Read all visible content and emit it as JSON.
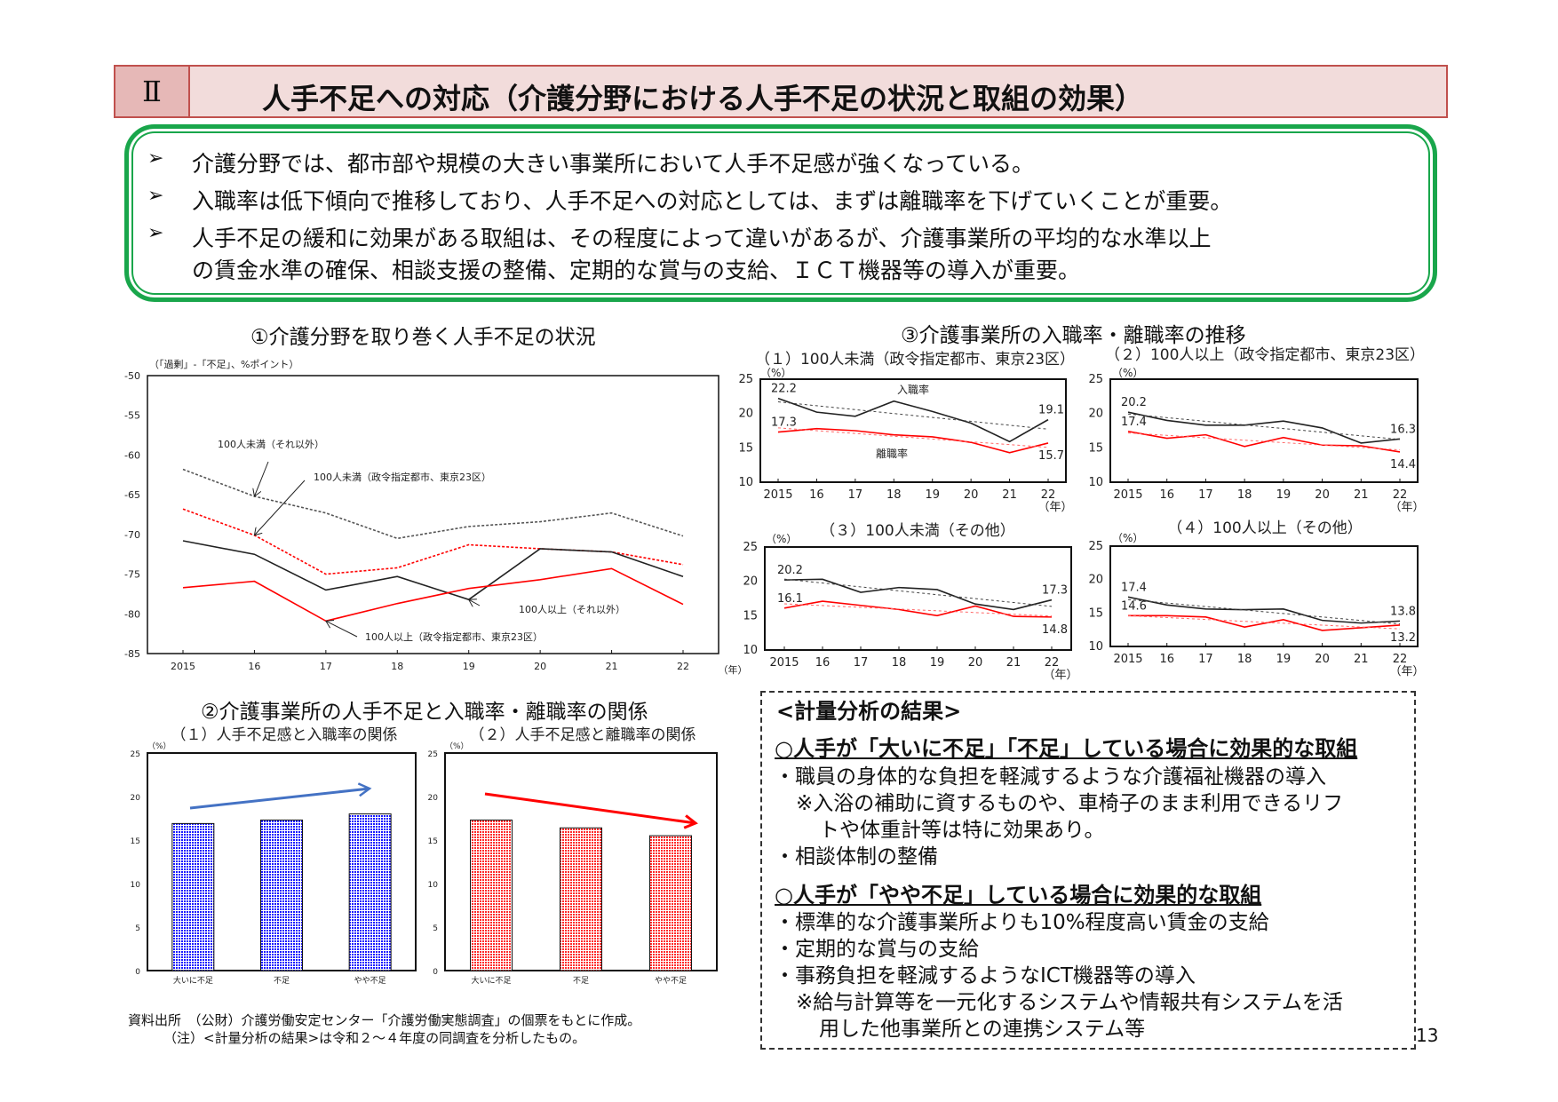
{
  "header": {
    "roman": "Ⅱ",
    "title": "人手不足への対応（介護分野における人手不足の状況と取組の効果）"
  },
  "summary": {
    "bullet_icon": "arrow-right-icon",
    "arrow": "➢",
    "lines": [
      "介護分野では、都市部や規模の大きい事業所において人手不足感が強くなっている。",
      "入職率は低下傾向で推移しており、人手不足への対応としては、まずは離職率を下げていくことが重要。",
      "人手不足の緩和に効果がある取組は、その程度によって違いがあるが、介護事業所の平均的な水準以上",
      "の賃金水準の確保、相談支援の整備、定期的な賞与の支給、ＩＣＴ機器等の導入が重要。"
    ]
  },
  "section1_title": "①介護分野を取り巻く人手不足の状況",
  "section2_title": "②介護事業所の人手不足と入職率・離職率の関係",
  "section3_title": "③介護事業所の入職率・離職率の推移",
  "chart_data": [
    {
      "id": "c1",
      "type": "line",
      "title": "①介護分野を取り巻く人手不足の状況",
      "ylabel": "（「過剰」-「不足」、%ポイント）",
      "xunit": "（年）",
      "x": [
        "2015",
        "16",
        "17",
        "18",
        "19",
        "20",
        "21",
        "22"
      ],
      "ylim": [
        -85,
        -50
      ],
      "yticks": [
        -50,
        -55,
        -60,
        -65,
        -70,
        -75,
        -80,
        -85
      ],
      "grid": false,
      "series": [
        {
          "name": "100人未満（それ以外）",
          "color": "#555555",
          "dash": true,
          "values": [
            -61.8,
            -65.2,
            -67.3,
            -70.5,
            -69.0,
            -68.4,
            -67.3,
            -70.2
          ]
        },
        {
          "name": "100人未満（政令指定都市、東京23区）",
          "color": "#ff0000",
          "dash": true,
          "values": [
            -66.8,
            -70.1,
            -75.0,
            -74.2,
            -71.3,
            -71.8,
            -72.2,
            -73.8
          ]
        },
        {
          "name": "100人以上（それ以外）",
          "color": "#222222",
          "dash": false,
          "values": [
            -70.8,
            -72.5,
            -77.0,
            -75.3,
            -78.2,
            -71.8,
            -72.2,
            -75.3
          ]
        },
        {
          "name": "100人以上（政令指定都市、東京23区）",
          "color": "#ff0000",
          "dash": false,
          "values": [
            -76.7,
            -75.9,
            -80.9,
            -78.7,
            -76.8,
            -75.7,
            -74.3,
            -78.8
          ]
        }
      ]
    },
    {
      "id": "p1",
      "type": "line",
      "title": "（１）100人未満（政令指定都市、東京23区）",
      "ylabel": "（%）",
      "xunit": "（年）",
      "x": [
        "2015",
        "16",
        "17",
        "18",
        "19",
        "20",
        "21",
        "22"
      ],
      "ylim": [
        10,
        25
      ],
      "yticks": [
        25,
        20,
        15,
        10
      ],
      "trend": true,
      "series": [
        {
          "name": "入職率",
          "color": "#222222",
          "values": [
            22.2,
            20.2,
            19.6,
            21.8,
            20.3,
            18.6,
            15.9,
            19.1
          ]
        },
        {
          "name": "離職率",
          "color": "#ff0000",
          "values": [
            17.3,
            17.8,
            17.5,
            16.9,
            16.6,
            15.8,
            14.3,
            15.7
          ]
        }
      ]
    },
    {
      "id": "p2",
      "type": "line",
      "title": "（２）100人以上（政令指定都市、東京23区）",
      "ylabel": "（%）",
      "xunit": "（年）",
      "x": [
        "2015",
        "16",
        "17",
        "18",
        "19",
        "20",
        "21",
        "22"
      ],
      "ylim": [
        10,
        25
      ],
      "yticks": [
        25,
        20,
        15,
        10
      ],
      "trend": true,
      "series": [
        {
          "name": "入職率",
          "color": "#222222",
          "values": [
            20.2,
            19.0,
            18.3,
            18.3,
            18.9,
            17.9,
            15.7,
            16.3
          ]
        },
        {
          "name": "離職率",
          "color": "#ff0000",
          "values": [
            17.4,
            16.4,
            16.9,
            15.2,
            16.5,
            15.4,
            15.3,
            14.4
          ]
        }
      ]
    },
    {
      "id": "p3",
      "type": "line",
      "title": "（３）100人未満（その他）",
      "ylabel": "（%）",
      "xunit": "（年）",
      "x": [
        "2015",
        "16",
        "17",
        "18",
        "19",
        "20",
        "21",
        "22"
      ],
      "ylim": [
        10,
        25
      ],
      "yticks": [
        25,
        20,
        15,
        10
      ],
      "trend": true,
      "series": [
        {
          "name": "入職率",
          "color": "#222222",
          "values": [
            20.2,
            20.3,
            18.4,
            19.1,
            18.8,
            16.7,
            15.9,
            17.3
          ]
        },
        {
          "name": "離職率",
          "color": "#ff0000",
          "values": [
            16.1,
            17.1,
            16.5,
            15.9,
            15.0,
            16.4,
            14.9,
            14.8
          ]
        }
      ]
    },
    {
      "id": "p4",
      "type": "line",
      "title": "（４）100人以上（その他）",
      "ylabel": "（%）",
      "xunit": "（年）",
      "x": [
        "2015",
        "16",
        "17",
        "18",
        "19",
        "20",
        "21",
        "22"
      ],
      "ylim": [
        10,
        25
      ],
      "yticks": [
        25,
        20,
        15,
        10
      ],
      "trend": true,
      "series": [
        {
          "name": "入職率",
          "color": "#222222",
          "values": [
            17.4,
            16.2,
            15.6,
            15.5,
            15.6,
            13.9,
            13.5,
            13.8
          ]
        },
        {
          "name": "離職率",
          "color": "#ff0000",
          "values": [
            14.6,
            14.6,
            14.4,
            12.9,
            14.0,
            12.4,
            12.8,
            13.2
          ]
        }
      ]
    },
    {
      "id": "b1",
      "type": "bar",
      "title": "（１）人手不足感と入職率の関係",
      "ylabel": "（%）",
      "categories": [
        "大いに不足",
        "不足",
        "やや不足"
      ],
      "values": [
        16.9,
        17.3,
        18.0
      ],
      "ylim": [
        0,
        25
      ],
      "yticks": [
        25,
        20,
        15,
        10,
        5,
        0
      ],
      "color": "#0000ff",
      "trend_arrow": "up"
    },
    {
      "id": "b2",
      "type": "bar",
      "title": "（２）人手不足感と離職率の関係",
      "ylabel": "（%）",
      "categories": [
        "大いに不足",
        "不足",
        "やや不足"
      ],
      "values": [
        17.3,
        16.4,
        15.5
      ],
      "ylim": [
        0,
        25
      ],
      "yticks": [
        25,
        20,
        15,
        10,
        5,
        0
      ],
      "color": "#ff0000",
      "trend_arrow": "down"
    }
  ],
  "results": {
    "heading": "<計量分析の結果>",
    "group1_title": "○人手が「大いに不足」「不足」している場合に効果的な取組",
    "group1_items": [
      "・職員の身体的な負担を軽減するような介護福祉機器の導入",
      "※入浴の補助に資するものや、車椅子のまま利用できるリフ",
      "トや体重計等は特に効果あり。",
      "・相談体制の整備"
    ],
    "group2_title": "○人手が「やや不足」している場合に効果的な取組",
    "group2_items": [
      "・標準的な介護事業所よりも10%程度高い賃金の支給",
      "・定期的な賞与の支給",
      "・事務負担を軽減するようなICT機器等の導入",
      "※給与計算等を一元化するシステムや情報共有システムを活",
      "用した他事業所との連携システム等"
    ]
  },
  "footer": {
    "source": "資料出所　（公財）介護労働安定センター「介護労働実態調査」の個票をもとに作成。",
    "note": "（注）<計量分析の結果>は令和２～４年度の同調査を分析したもの。",
    "page_number": "13"
  }
}
